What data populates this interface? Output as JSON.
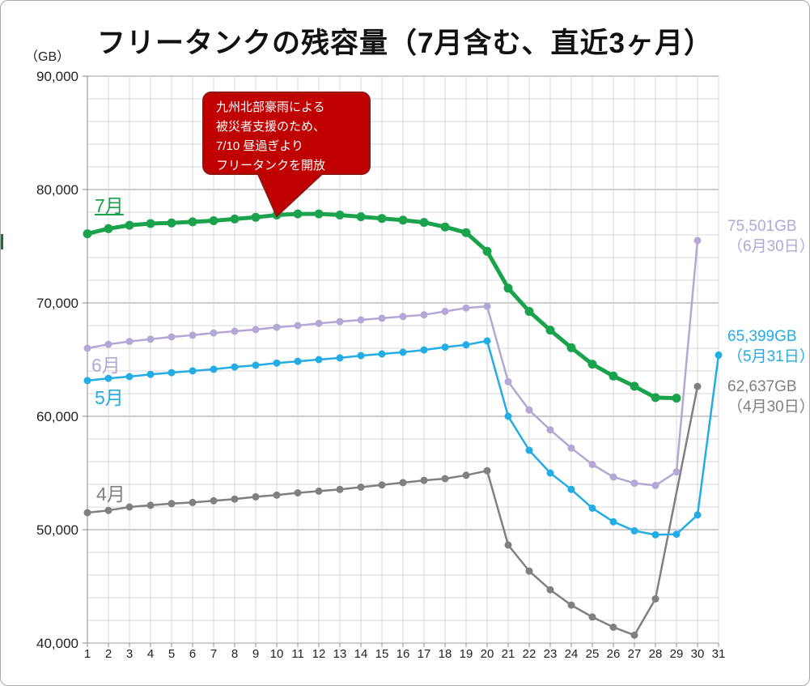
{
  "chart_data": {
    "type": "line",
    "title": "フリータンクの残容量（7月含む、直近3ヶ月）",
    "unit": "（GB）",
    "ylim": [
      40000,
      90000
    ],
    "grid": {
      "minor_step": 2000,
      "major_step": 10000,
      "grid_on": true
    },
    "y_tick_labels": [
      "90,000",
      "80,000",
      "70,000",
      "60,000",
      "50,000",
      "40,000"
    ],
    "x_days": [
      "1",
      "2",
      "3",
      "4",
      "5",
      "6",
      "7",
      "8",
      "9",
      "10",
      "11",
      "12",
      "13",
      "14",
      "15",
      "16",
      "17",
      "18",
      "19",
      "20",
      "21",
      "22",
      "23",
      "24",
      "25",
      "26",
      "27",
      "28",
      "29",
      "30",
      "31"
    ],
    "series": [
      {
        "id": "april",
        "name": "4月",
        "color": "#808080",
        "values": [
          51500,
          51700,
          52000,
          52150,
          52300,
          52400,
          52550,
          52700,
          52900,
          53050,
          53250,
          53400,
          53550,
          53750,
          53950,
          54150,
          54350,
          54500,
          54800,
          55200,
          48650,
          46350,
          44700,
          43350,
          42300,
          41400,
          40700,
          43900,
          null,
          62637
        ]
      },
      {
        "id": "june",
        "name": "6月",
        "color": "#b4a7d6",
        "values": [
          66000,
          66350,
          66600,
          66800,
          67000,
          67150,
          67350,
          67500,
          67650,
          67850,
          68000,
          68200,
          68350,
          68500,
          68650,
          68800,
          68950,
          69250,
          69550,
          69700,
          63050,
          60550,
          58800,
          57200,
          55750,
          54650,
          54100,
          53900,
          55100,
          75501
        ]
      },
      {
        "id": "may",
        "name": "5月",
        "color": "#23ade4",
        "values": [
          63150,
          63350,
          63500,
          63700,
          63850,
          64000,
          64150,
          64350,
          64500,
          64700,
          64850,
          65000,
          65150,
          65350,
          65500,
          65650,
          65850,
          66100,
          66300,
          66650,
          60000,
          57000,
          55000,
          53550,
          51900,
          50700,
          49900,
          49550,
          49600,
          51300,
          65399
        ]
      },
      {
        "id": "july",
        "name": "7月",
        "color": "#1aa24c",
        "values": [
          76100,
          76550,
          76850,
          77000,
          77050,
          77150,
          77250,
          77400,
          77550,
          77750,
          77850,
          77850,
          77750,
          77600,
          77450,
          77300,
          77100,
          76700,
          76200,
          74550,
          71300,
          69250,
          67600,
          66050,
          64600,
          63550,
          62650,
          61650,
          61600
        ]
      }
    ],
    "annotation": {
      "lines": [
        "九州北部豪雨による",
        "被災者支援のため、",
        "7/10 昼過ぎより",
        "フリータンクを開放"
      ],
      "fill": "#c00000",
      "border": "#8e1613",
      "points_to_day": 10
    },
    "end_labels": [
      {
        "id": "june",
        "value": "75,501GB",
        "date": "（6月30日）",
        "color": "#b4a7d6"
      },
      {
        "id": "may",
        "value": "65,399GB",
        "date": "（5月31日）",
        "color": "#23ade4"
      },
      {
        "id": "april",
        "value": "62,637GB",
        "date": "（4月30日）",
        "color": "#808080"
      }
    ]
  }
}
